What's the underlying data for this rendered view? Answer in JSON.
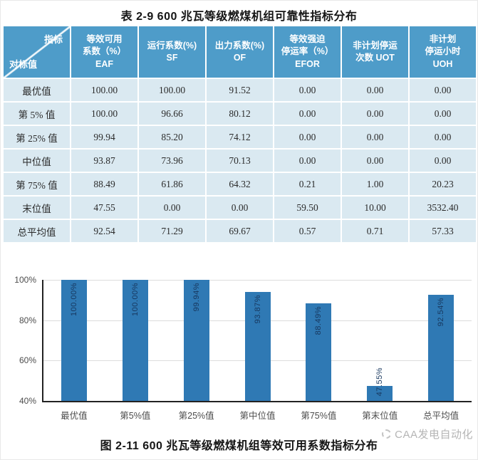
{
  "page": {
    "title": "表 2-9   600 兆瓦等级燃煤机组可靠性指标分布",
    "caption": "图 2-11   600 兆瓦等级燃煤机组等效可用系数指标分布",
    "watermark": "CAA发电自动化"
  },
  "table": {
    "corner": {
      "top_right": "指标",
      "bottom_left": "对标值"
    },
    "columns": [
      "等效可用\n系数（%）\nEAF",
      "运行系数(%)\nSF",
      "出力系数(%)\nOF",
      "等效强迫\n停运率（%）\nEFOR",
      "非计划停运\n次数 UOT",
      "非计划\n停运小时\nUOH"
    ],
    "rows": [
      {
        "label": "最优值",
        "values": [
          "100.00",
          "100.00",
          "91.52",
          "0.00",
          "0.00",
          "0.00"
        ]
      },
      {
        "label": "第 5% 值",
        "values": [
          "100.00",
          "96.66",
          "80.12",
          "0.00",
          "0.00",
          "0.00"
        ]
      },
      {
        "label": "第 25% 值",
        "values": [
          "99.94",
          "85.20",
          "74.12",
          "0.00",
          "0.00",
          "0.00"
        ]
      },
      {
        "label": "中位值",
        "values": [
          "93.87",
          "73.96",
          "70.13",
          "0.00",
          "0.00",
          "0.00"
        ]
      },
      {
        "label": "第 75% 值",
        "values": [
          "88.49",
          "61.86",
          "64.32",
          "0.21",
          "1.00",
          "20.23"
        ]
      },
      {
        "label": "末位值",
        "values": [
          "47.55",
          "0.00",
          "0.00",
          "59.50",
          "10.00",
          "3532.40"
        ]
      },
      {
        "label": "总平均值",
        "values": [
          "92.54",
          "71.29",
          "69.67",
          "0.57",
          "0.71",
          "57.33"
        ]
      }
    ]
  },
  "chart_data": {
    "type": "bar",
    "title": "",
    "xlabel": "",
    "ylabel": "",
    "categories": [
      "最优值",
      "第5%值",
      "第25%值",
      "第中位值",
      "第75%值",
      "第末位值",
      "总平均值"
    ],
    "values": [
      100.0,
      100.0,
      99.94,
      93.87,
      88.49,
      47.55,
      92.54
    ],
    "labels": [
      "100.00%",
      "100.00%",
      "99.94%",
      "93.87%",
      "88.49%",
      "47.55%",
      "92.54%"
    ],
    "ylim": [
      40,
      100
    ],
    "yticks": [
      "100%",
      "80%",
      "60%",
      "40%"
    ],
    "grid": true,
    "legend_position": "none"
  },
  "colors": {
    "table_header_bg": "#4E9CC9",
    "table_row_bg": "#DAE9F1",
    "bar_fill": "#2F79B4",
    "bar_label_text": "#17375E",
    "gridline": "#DCDCDC",
    "watermark_text": "#B5B5B5"
  }
}
